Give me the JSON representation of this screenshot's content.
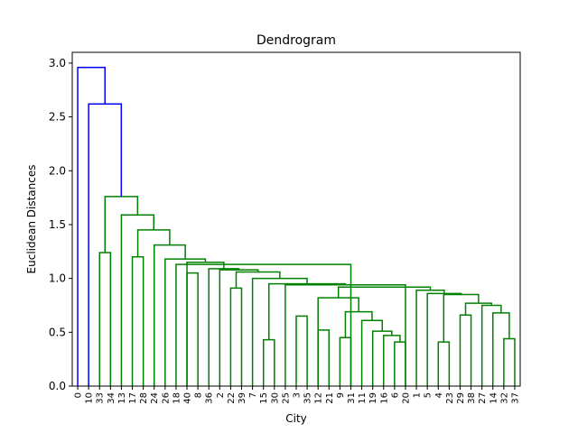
{
  "chart_data": {
    "type": "dendrogram",
    "title": "Dendrogram",
    "xlabel": "City",
    "ylabel": "Euclidean Distances",
    "ylim": [
      0,
      3.1
    ],
    "yticks": [
      0.0,
      0.5,
      1.0,
      1.5,
      2.0,
      2.5,
      3.0
    ],
    "ytick_labels": [
      "0.0",
      "0.5",
      "1.0",
      "1.5",
      "2.0",
      "2.5",
      "3.0"
    ],
    "leaves": [
      "0",
      "10",
      "33",
      "34",
      "13",
      "17",
      "28",
      "24",
      "26",
      "18",
      "40",
      "8",
      "36",
      "2",
      "22",
      "39",
      "7",
      "15",
      "30",
      "25",
      "3",
      "35",
      "12",
      "21",
      "9",
      "31",
      "11",
      "19",
      "16",
      "6",
      "20",
      "1",
      "5",
      "4",
      "23",
      "29",
      "38",
      "27",
      "14",
      "32",
      "37"
    ],
    "colors": {
      "above_threshold": "#0000ff",
      "cluster": "#008000"
    },
    "merges": [
      {
        "a": 0,
        "b": 1,
        "height": 2.96,
        "color": "#0000ff"
      },
      {
        "a": 1,
        "b": 2,
        "height": 2.62,
        "color": "#0000ff"
      },
      {
        "a": 2,
        "b": 3,
        "height": 1.76,
        "color": "#008000"
      },
      {
        "a": 2,
        "b": 3,
        "height": 1.24,
        "color": "#008000"
      },
      {
        "a": 3,
        "b": 4,
        "height": 1.59,
        "color": "#008000"
      },
      {
        "a": 5,
        "b": 6,
        "height": 1.2,
        "color": "#008000"
      },
      {
        "a": 4,
        "b": 5,
        "height": 1.45,
        "color": "#008000"
      },
      {
        "a": 5,
        "b": 6,
        "height": 1.31,
        "color": "#008000"
      },
      {
        "a": 6,
        "b": 7,
        "height": 1.18,
        "color": "#008000"
      },
      {
        "a": 7,
        "b": 8,
        "height": 1.13,
        "color": "#008000"
      },
      {
        "a": 8,
        "b": 9,
        "height": 1.05,
        "color": "#008000"
      },
      {
        "a": 8,
        "b": 9,
        "height": 1.15,
        "color": "#008000"
      },
      {
        "a": 9,
        "b": 10,
        "height": 1.09,
        "color": "#008000"
      },
      {
        "a": 10,
        "b": 11,
        "height": 0.91,
        "color": "#008000"
      },
      {
        "a": 10,
        "b": 11,
        "height": 1.08,
        "color": "#008000"
      },
      {
        "a": 11,
        "b": 12,
        "height": 1.06,
        "color": "#008000"
      },
      {
        "a": 12,
        "b": 13,
        "height": 0.43,
        "color": "#008000"
      },
      {
        "a": 12,
        "b": 13,
        "height": 1.0,
        "color": "#008000"
      },
      {
        "a": 13,
        "b": 14,
        "height": 0.95,
        "color": "#008000"
      },
      {
        "a": 14,
        "b": 15,
        "height": 0.65,
        "color": "#008000"
      },
      {
        "a": 14,
        "b": 15,
        "height": 0.94,
        "color": "#008000"
      },
      {
        "a": 15,
        "b": 16,
        "height": 0.52,
        "color": "#008000"
      },
      {
        "a": 16,
        "b": 17,
        "height": 0.45,
        "color": "#008000"
      },
      {
        "a": 15,
        "b": 16,
        "height": 0.82,
        "color": "#008000"
      },
      {
        "a": 16,
        "b": 17,
        "height": 0.69,
        "color": "#008000"
      },
      {
        "a": 17,
        "b": 18,
        "height": 0.61,
        "color": "#008000"
      },
      {
        "a": 18,
        "b": 19,
        "height": 0.51,
        "color": "#008000"
      },
      {
        "a": 19,
        "b": 20,
        "height": 0.47,
        "color": "#008000"
      },
      {
        "a": 20,
        "b": 21,
        "height": 0.41,
        "color": "#008000"
      },
      {
        "a": 20,
        "b": 21,
        "height": 0.92,
        "color": "#008000"
      },
      {
        "a": 21,
        "b": 22,
        "height": 0.89,
        "color": "#008000"
      },
      {
        "a": 22,
        "b": 23,
        "height": 0.41,
        "color": "#008000"
      },
      {
        "a": 22,
        "b": 23,
        "height": 0.86,
        "color": "#008000"
      },
      {
        "a": 23,
        "b": 24,
        "height": 0.66,
        "color": "#008000"
      },
      {
        "a": 23,
        "b": 24,
        "height": 0.85,
        "color": "#008000"
      },
      {
        "a": 24,
        "b": 25,
        "height": 0.77,
        "color": "#008000"
      },
      {
        "a": 25,
        "b": 26,
        "height": 0.75,
        "color": "#008000"
      },
      {
        "a": 26,
        "b": 27,
        "height": 0.68,
        "color": "#008000"
      },
      {
        "a": 27,
        "b": 28,
        "height": 0.44,
        "color": "#008000"
      }
    ],
    "grid": false,
    "legend": "none"
  }
}
